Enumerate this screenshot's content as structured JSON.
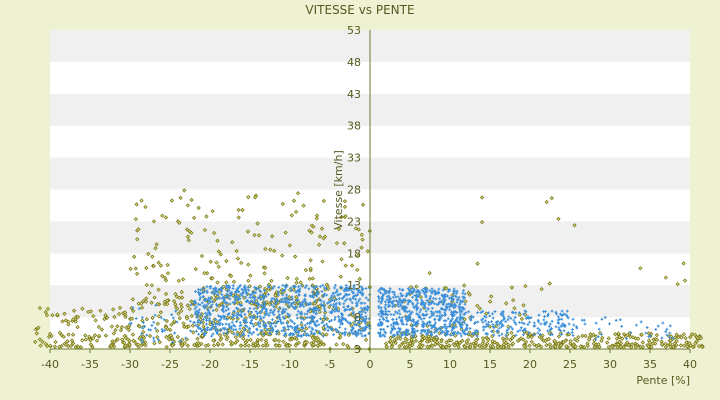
{
  "chart_data": {
    "type": "scatter",
    "title": "VITESSE vs PENTE",
    "xlabel": "Pente [%]",
    "ylabel": "Vitesse [km/h]",
    "xlim": [
      -40,
      40
    ],
    "ylim": [
      3,
      53
    ],
    "x_ticks": [
      -40,
      -35,
      -30,
      -25,
      -20,
      -15,
      -10,
      -5,
      0,
      5,
      10,
      15,
      20,
      25,
      30,
      35,
      40
    ],
    "y_ticks": [
      3,
      8,
      13,
      18,
      23,
      28,
      33,
      38,
      43,
      48,
      53
    ],
    "grid": "horizontal bands",
    "legend": "none",
    "colors": {
      "background": "#eef2d2",
      "plot_band_light": "#ffffff",
      "plot_band_dark": "#f0f0f0",
      "axis": "#6b7a2a",
      "text": "#555a20",
      "series_olive": "#7a7a18",
      "series_blue": "#3b8fd9"
    },
    "series": [
      {
        "color": "#7a7a18",
        "marker": "diamond",
        "clusters": [
          {
            "x_range": [
              -42,
              -25
            ],
            "y_range": [
              3.3,
              9.5
            ],
            "count": 170
          },
          {
            "x_range": [
              -25,
              -5
            ],
            "y_range": [
              3.5,
              13
            ],
            "count": 320
          },
          {
            "x_range": [
              -30,
              -5
            ],
            "y_range": [
              10,
              28
            ],
            "count": 210
          },
          {
            "x_range": [
              -5,
              0
            ],
            "y_range": [
              3,
              30
            ],
            "count": 60
          },
          {
            "x_range": [
              2,
              42
            ],
            "y_range": [
              3.3,
              5.5
            ],
            "count": 380
          },
          {
            "x_range": [
              3,
              20
            ],
            "y_range": [
              5.5,
              13
            ],
            "count": 60
          },
          {
            "x_range": [
              5,
              40
            ],
            "y_range": [
              12,
              27.5
            ],
            "count": 15
          }
        ]
      },
      {
        "color": "#3b8fd9",
        "marker": "plus",
        "clusters": [
          {
            "x_range": [
              -22,
              0
            ],
            "y_range": [
              5,
              13
            ],
            "count": 900
          },
          {
            "x_range": [
              -30,
              -22
            ],
            "y_range": [
              4,
              10
            ],
            "count": 40
          },
          {
            "x_range": [
              1,
              12
            ],
            "y_range": [
              5,
              12.5
            ],
            "count": 600
          },
          {
            "x_range": [
              12,
              25
            ],
            "y_range": [
              5,
              9
            ],
            "count": 180
          },
          {
            "x_range": [
              25,
              38
            ],
            "y_range": [
              4.5,
              8
            ],
            "count": 40
          }
        ]
      }
    ]
  }
}
